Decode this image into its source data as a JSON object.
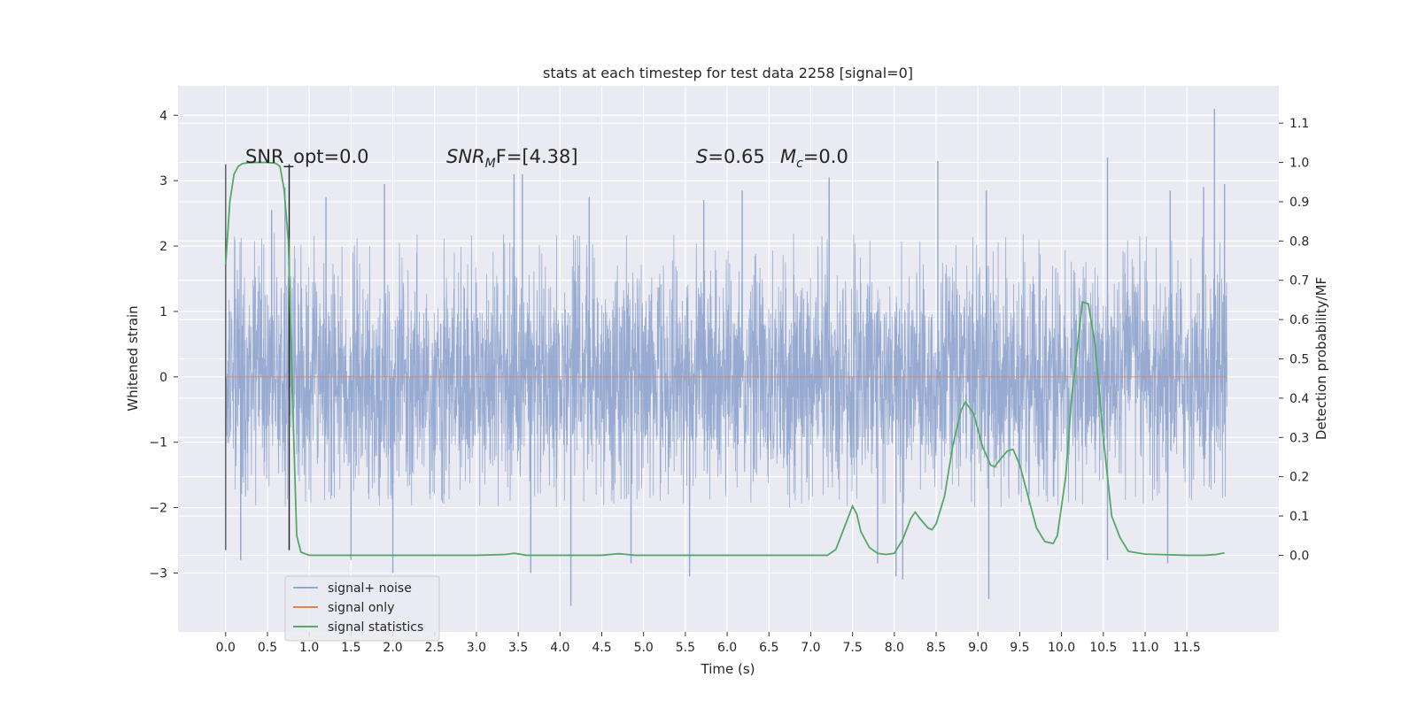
{
  "chart_data": {
    "type": "line",
    "title": "stats at each timestep for test data 2258 [signal=0]",
    "xlabel": "Time (s)",
    "ylabel_left": "Whitened strain",
    "ylabel_right": "Detection probability/MF",
    "xlim": [
      -0.57,
      12.6
    ],
    "ylim_left": [
      -3.9,
      4.45
    ],
    "ylim_right": [
      -0.195,
      1.195
    ],
    "x_ticks": [
      "0.0",
      "0.5",
      "1.0",
      "1.5",
      "2.0",
      "2.5",
      "3.0",
      "3.5",
      "4.0",
      "4.5",
      "5.0",
      "5.5",
      "6.0",
      "6.5",
      "7.0",
      "7.5",
      "8.0",
      "8.5",
      "9.0",
      "9.5",
      "10.0",
      "10.5",
      "11.0",
      "11.5"
    ],
    "y_ticks_left": [
      "−3",
      "−2",
      "−1",
      "0",
      "1",
      "2",
      "3",
      "4"
    ],
    "y_ticks_right": [
      "0.0",
      "0.1",
      "0.2",
      "0.3",
      "0.4",
      "0.5",
      "0.6",
      "0.7",
      "0.8",
      "0.9",
      "1.0",
      "1.1"
    ],
    "grid": true,
    "legend_position": "lower-left",
    "legend": [
      "signal+ noise",
      "signal only",
      "signal statistics"
    ],
    "annotations": {
      "snr_opt": "SNR_opt=0.0",
      "snr_mf": "SNR",
      "snr_mf_sub": "M",
      "snr_mf_rest": "F=[4.38]",
      "s_label": "S",
      "s_value": "=0.65",
      "mc_label": "M",
      "mc_sub": "c",
      "mc_value": "=0.0"
    },
    "noise_series": {
      "name": "signal+ noise",
      "x_range": [
        0.0,
        11.98
      ],
      "color": "#92a6cf",
      "band_1sigma": [
        -0.9,
        0.9
      ],
      "envelope": [
        -2.0,
        2.2
      ],
      "tall_spikes": [
        {
          "x": 0.55,
          "y": 2.55
        },
        {
          "x": 0.71,
          "y": 2.9
        },
        {
          "x": 1.2,
          "y": 2.75
        },
        {
          "x": 1.9,
          "y": 2.95
        },
        {
          "x": 3.45,
          "y": 3.1
        },
        {
          "x": 3.55,
          "y": 3.1
        },
        {
          "x": 4.35,
          "y": 2.75
        },
        {
          "x": 5.72,
          "y": 2.7
        },
        {
          "x": 6.18,
          "y": 2.85
        },
        {
          "x": 7.22,
          "y": 3.05
        },
        {
          "x": 8.52,
          "y": 3.3
        },
        {
          "x": 9.1,
          "y": 2.85
        },
        {
          "x": 10.55,
          "y": 3.35
        },
        {
          "x": 11.3,
          "y": 2.85
        },
        {
          "x": 11.7,
          "y": 2.9
        },
        {
          "x": 11.83,
          "y": 4.1
        },
        {
          "x": 11.95,
          "y": 2.95
        },
        {
          "x": 0.18,
          "y": -2.8
        },
        {
          "x": 1.5,
          "y": -2.8
        },
        {
          "x": 2.0,
          "y": -3.0
        },
        {
          "x": 3.65,
          "y": -3.0
        },
        {
          "x": 4.13,
          "y": -3.5
        },
        {
          "x": 4.85,
          "y": -2.85
        },
        {
          "x": 5.55,
          "y": -3.05
        },
        {
          "x": 7.8,
          "y": -2.85
        },
        {
          "x": 8.02,
          "y": -3.05
        },
        {
          "x": 8.1,
          "y": -3.1
        },
        {
          "x": 9.13,
          "y": -3.4
        },
        {
          "x": 10.55,
          "y": -2.8
        },
        {
          "x": 11.27,
          "y": -2.85
        }
      ]
    },
    "signal_only": {
      "name": "signal only",
      "color": "#dd8452",
      "y": 0.0
    },
    "statistics_series": {
      "name": "signal statistics",
      "color": "#55a868",
      "points": [
        [
          0.0,
          0.74
        ],
        [
          0.05,
          0.9
        ],
        [
          0.1,
          0.97
        ],
        [
          0.15,
          0.99
        ],
        [
          0.2,
          0.997
        ],
        [
          0.3,
          1.0
        ],
        [
          0.4,
          1.0
        ],
        [
          0.5,
          1.0
        ],
        [
          0.6,
          0.998
        ],
        [
          0.65,
          0.99
        ],
        [
          0.7,
          0.93
        ],
        [
          0.75,
          0.8
        ],
        [
          0.8,
          0.4
        ],
        [
          0.85,
          0.05
        ],
        [
          0.9,
          0.008
        ],
        [
          1.0,
          0.0
        ],
        [
          2.0,
          0.0
        ],
        [
          3.0,
          0.0
        ],
        [
          3.35,
          0.002
        ],
        [
          3.45,
          0.005
        ],
        [
          3.6,
          0.0
        ],
        [
          4.5,
          0.0
        ],
        [
          4.7,
          0.004
        ],
        [
          4.9,
          0.0
        ],
        [
          7.2,
          0.0
        ],
        [
          7.3,
          0.015
        ],
        [
          7.4,
          0.07
        ],
        [
          7.5,
          0.125
        ],
        [
          7.55,
          0.105
        ],
        [
          7.6,
          0.06
        ],
        [
          7.7,
          0.02
        ],
        [
          7.8,
          0.005
        ],
        [
          7.9,
          0.002
        ],
        [
          8.0,
          0.005
        ],
        [
          8.1,
          0.04
        ],
        [
          8.2,
          0.095
        ],
        [
          8.25,
          0.11
        ],
        [
          8.3,
          0.095
        ],
        [
          8.4,
          0.07
        ],
        [
          8.45,
          0.065
        ],
        [
          8.5,
          0.08
        ],
        [
          8.6,
          0.15
        ],
        [
          8.7,
          0.28
        ],
        [
          8.8,
          0.37
        ],
        [
          8.85,
          0.39
        ],
        [
          8.95,
          0.36
        ],
        [
          9.05,
          0.28
        ],
        [
          9.15,
          0.23
        ],
        [
          9.2,
          0.225
        ],
        [
          9.25,
          0.24
        ],
        [
          9.35,
          0.265
        ],
        [
          9.42,
          0.27
        ],
        [
          9.5,
          0.23
        ],
        [
          9.6,
          0.15
        ],
        [
          9.7,
          0.07
        ],
        [
          9.8,
          0.035
        ],
        [
          9.9,
          0.03
        ],
        [
          9.95,
          0.05
        ],
        [
          10.05,
          0.2
        ],
        [
          10.12,
          0.4
        ],
        [
          10.2,
          0.55
        ],
        [
          10.25,
          0.645
        ],
        [
          10.32,
          0.64
        ],
        [
          10.4,
          0.54
        ],
        [
          10.5,
          0.3
        ],
        [
          10.6,
          0.1
        ],
        [
          10.7,
          0.045
        ],
        [
          10.8,
          0.01
        ],
        [
          11.0,
          0.003
        ],
        [
          11.5,
          0.0
        ],
        [
          11.7,
          0.0
        ],
        [
          11.85,
          0.002
        ],
        [
          11.95,
          0.006
        ]
      ]
    },
    "vertical_markers": [
      {
        "x": 0.0,
        "y_range": [
          -2.65,
          3.25
        ],
        "color": "#555555"
      },
      {
        "x": 0.76,
        "y_range": [
          -2.65,
          3.25
        ],
        "color": "#222222"
      }
    ]
  }
}
